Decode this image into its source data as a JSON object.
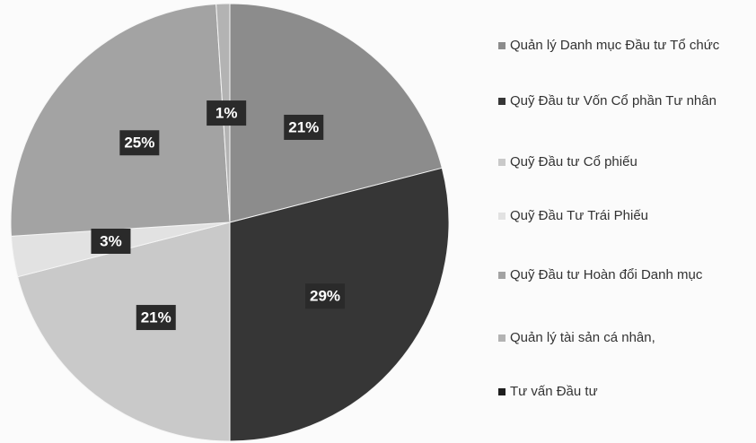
{
  "chart_data": {
    "type": "pie",
    "categories": [
      "Quản lý Danh mục Đầu tư Tổ chức",
      "Quỹ Đầu tư Vốn Cổ phần Tư nhân",
      "Quỹ Đầu tư Cổ phiếu",
      "Quỹ Đầu Tư Trái Phiếu",
      "Quỹ Đầu tư Hoàn đổi Danh mục",
      "Quản lý tài sản cá nhân,",
      "Tư vấn Đầu tư"
    ],
    "values": [
      21,
      29,
      21,
      3,
      25,
      1,
      0
    ],
    "value_labels": [
      "21%",
      "29%",
      "21%",
      "3%",
      "25%",
      "1%",
      null
    ],
    "colors": [
      "#8c8c8c",
      "#363636",
      "#c9c9c9",
      "#e2e2e2",
      "#a3a3a3",
      "#b3b3b3",
      "#1e1e1e"
    ],
    "legend": "right"
  }
}
